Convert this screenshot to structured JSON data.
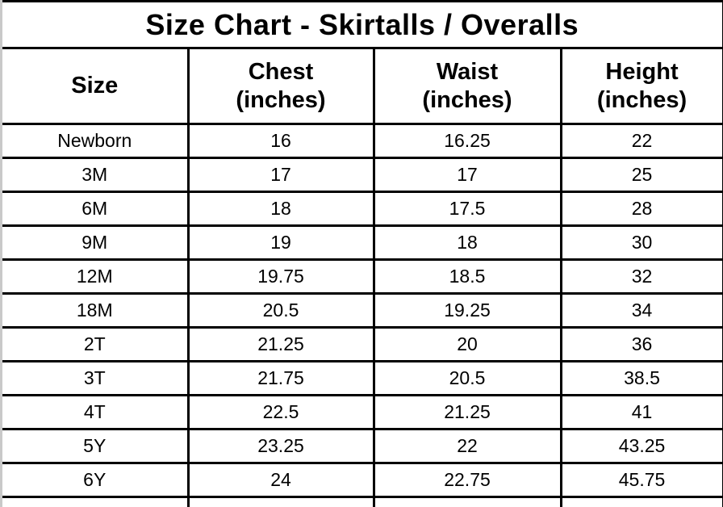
{
  "colors": {
    "border": "#000000",
    "background": "#ffffff",
    "text": "#000000",
    "left_edge": "#c9c9c9"
  },
  "chart_data": {
    "type": "table",
    "title": "Size Chart - Skirtalls / Overalls",
    "columns": [
      {
        "label": "Size",
        "sub": ""
      },
      {
        "label": "Chest",
        "sub": "(inches)"
      },
      {
        "label": "Waist",
        "sub": "(inches)"
      },
      {
        "label": "Height",
        "sub": "(inches)"
      }
    ],
    "rows": [
      [
        "Newborn",
        "16",
        "16.25",
        "22"
      ],
      [
        "3M",
        "17",
        "17",
        "25"
      ],
      [
        "6M",
        "18",
        "17.5",
        "28"
      ],
      [
        "9M",
        "19",
        "18",
        "30"
      ],
      [
        "12M",
        "19.75",
        "18.5",
        "32"
      ],
      [
        "18M",
        "20.5",
        "19.25",
        "34"
      ],
      [
        "2T",
        "21.25",
        "20",
        "36"
      ],
      [
        "3T",
        "21.75",
        "20.5",
        "38.5"
      ],
      [
        "4T",
        "22.5",
        "21.25",
        "41"
      ],
      [
        "5Y",
        "23.25",
        "22",
        "43.25"
      ],
      [
        "6Y",
        "24",
        "22.75",
        "45.75"
      ]
    ]
  }
}
